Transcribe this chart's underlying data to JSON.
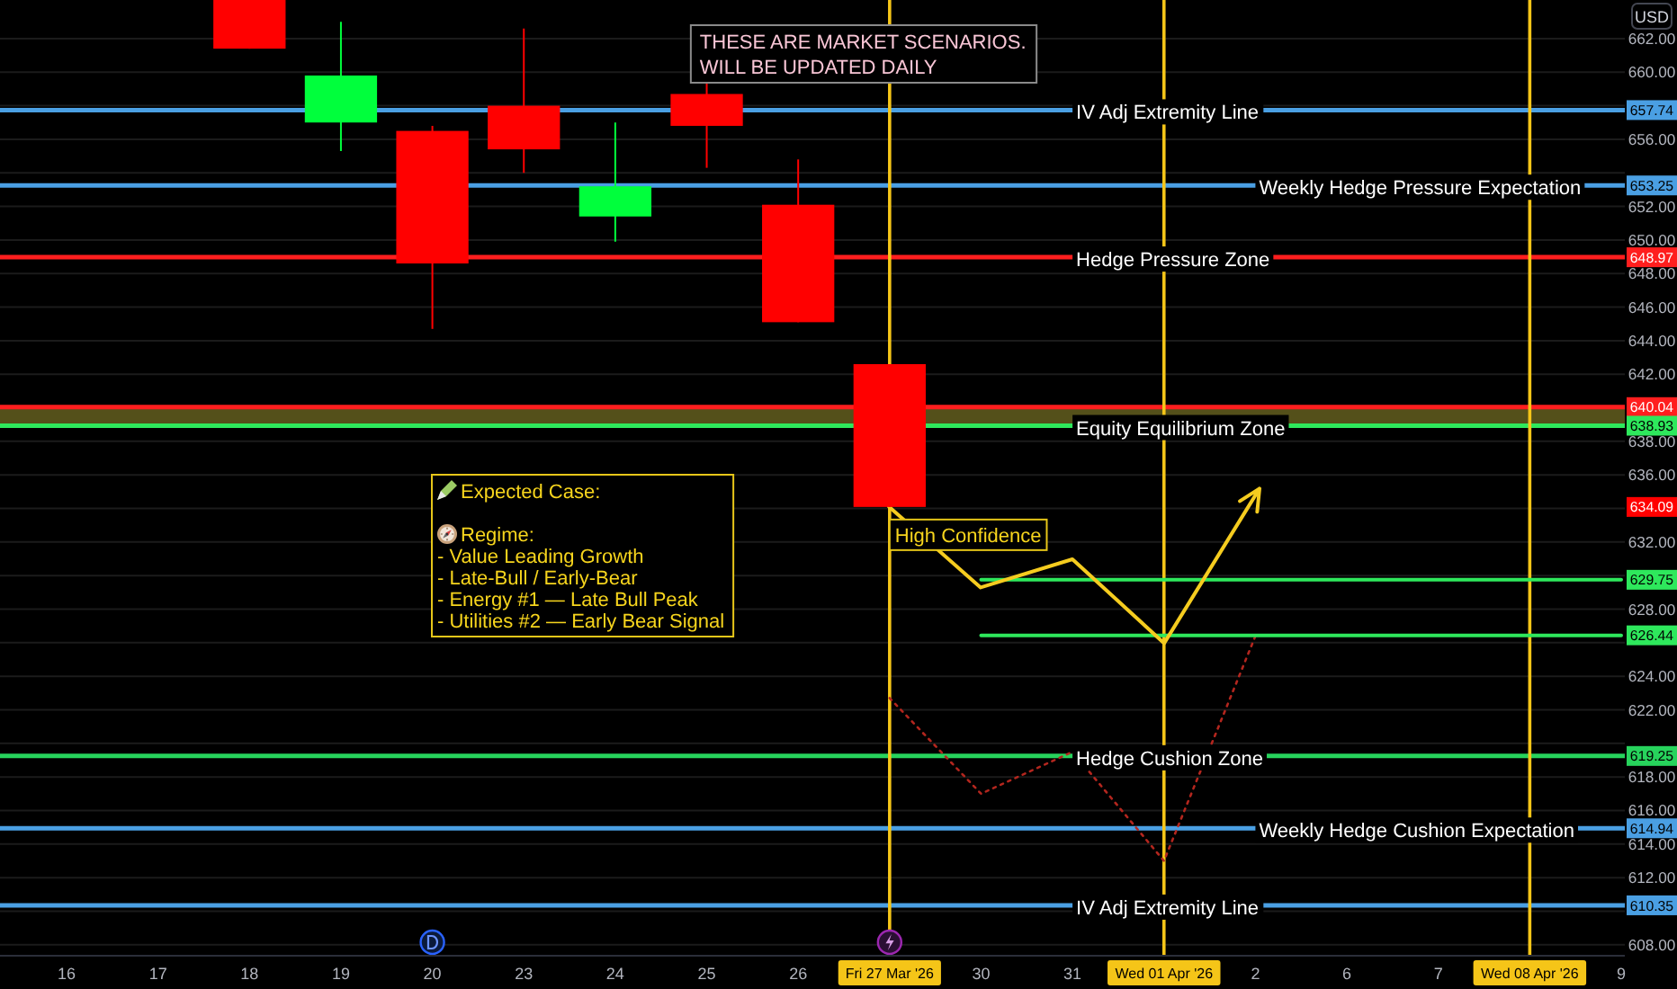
{
  "chart_data": {
    "type": "candlestick",
    "ylabel": "USD",
    "categories": [
      "16",
      "17",
      "18",
      "19",
      "20",
      "23",
      "24",
      "25",
      "26",
      "Fri 27 Mar '26",
      "30",
      "31",
      "Wed 01 Apr '26",
      "2",
      "6",
      "7",
      "Wed 08 Apr '26",
      "9"
    ],
    "ohlc": [
      null,
      null,
      [
        664.3,
        664.3,
        661.4,
        661.4
      ],
      [
        657.0,
        663.0,
        655.3,
        659.8
      ],
      [
        656.5,
        656.8,
        644.7,
        648.6
      ],
      [
        658.0,
        662.6,
        654.0,
        655.4
      ],
      [
        651.4,
        657.0,
        649.9,
        653.2
      ],
      [
        658.7,
        659.5,
        654.3,
        656.8
      ],
      [
        652.1,
        654.8,
        645.1,
        645.1
      ],
      [
        642.6,
        642.6,
        634.09,
        634.09
      ],
      null,
      null,
      null,
      null,
      null,
      null,
      null,
      null
    ],
    "colors": [
      null,
      null,
      "#ff0000",
      "#00ff3c",
      "#ff0000",
      "#ff0000",
      "#00ff3c",
      "#ff0000",
      "#ff0000",
      "#ff0000",
      null,
      null,
      null,
      null,
      null,
      null,
      null,
      null
    ],
    "value_labels": [
      null,
      null,
      null,
      null,
      null,
      null,
      null,
      null,
      null,
      "634.09",
      null,
      null,
      null,
      null,
      null,
      null,
      null,
      null
    ],
    "series": [
      {
        "type": "line",
        "color": "#b3261e",
        "line_style": "dotted",
        "values": [
          null,
          null,
          null,
          null,
          null,
          null,
          null,
          null,
          null,
          622.7,
          617.0,
          619.5,
          613.0,
          626.4,
          null,
          null,
          null,
          null
        ]
      },
      {
        "type": "line",
        "color": "#2ee85c",
        "values": [
          null,
          null,
          null,
          null,
          null,
          null,
          null,
          null,
          null,
          null,
          629.75,
          629.75,
          629.75,
          629.75,
          629.75,
          629.75,
          629.75,
          629.75
        ],
        "value_labels": [
          null,
          null,
          null,
          null,
          null,
          null,
          null,
          null,
          null,
          null,
          null,
          null,
          null,
          null,
          null,
          null,
          null,
          "629.75"
        ]
      },
      {
        "type": "line",
        "color": "#2ee85c",
        "values": [
          null,
          null,
          null,
          null,
          null,
          null,
          null,
          null,
          null,
          null,
          626.44,
          626.44,
          626.44,
          626.44,
          626.44,
          626.44,
          626.44,
          626.44
        ],
        "value_labels": [
          null,
          null,
          null,
          null,
          null,
          null,
          null,
          null,
          null,
          null,
          null,
          null,
          null,
          null,
          null,
          null,
          null,
          "626.44"
        ]
      }
    ],
    "ylim": [
      607.4,
      664.3
    ],
    "yticks": [
      {
        "value": 608,
        "label": "608.00"
      },
      {
        "value": 610,
        "label": null
      },
      {
        "value": 612,
        "label": "612.00"
      },
      {
        "value": 614,
        "label": "614.00"
      },
      {
        "value": 616,
        "label": "616.00"
      },
      {
        "value": 618,
        "label": "618.00"
      },
      {
        "value": 620,
        "label": null
      },
      {
        "value": 622,
        "label": "622.00"
      },
      {
        "value": 624,
        "label": "624.00"
      },
      {
        "value": 626,
        "label": null
      },
      {
        "value": 628,
        "label": "628.00"
      },
      {
        "value": 630,
        "label": null
      },
      {
        "value": 632,
        "label": "632.00"
      },
      {
        "value": 634,
        "label": null
      },
      {
        "value": 636,
        "label": "636.00"
      },
      {
        "value": 638,
        "label": "638.00"
      },
      {
        "value": 640,
        "label": null
      },
      {
        "value": 642,
        "label": "642.00"
      },
      {
        "value": 644,
        "label": "644.00"
      },
      {
        "value": 646,
        "label": "646.00"
      },
      {
        "value": 648,
        "label": "648.00"
      },
      {
        "value": 650,
        "label": "650.00"
      },
      {
        "value": 652,
        "label": "652.00"
      },
      {
        "value": 654,
        "label": null
      },
      {
        "value": 656,
        "label": "656.00"
      },
      {
        "value": 658,
        "label": null
      },
      {
        "value": 660,
        "label": "660.00"
      },
      {
        "value": 662,
        "label": "662.00"
      }
    ],
    "grid": "y",
    "ref_lines": [
      {
        "axis": "y",
        "value": 657.74,
        "label": "IV Adj Extremity Line",
        "color": "#4a9fe3"
      },
      {
        "axis": "y",
        "value": 653.25,
        "label": "Weekly Hedge Pressure Expectation",
        "color": "#4a9fe3"
      },
      {
        "axis": "y",
        "value": 648.97,
        "label": "Hedge Pressure Zone",
        "color": "#ff1e1e"
      },
      {
        "axis": "y",
        "value": 640.04,
        "color": "#ff1e1e"
      },
      {
        "axis": "y",
        "value": 638.93,
        "color": "#2ee85c"
      },
      {
        "axis": "y",
        "value": 619.25,
        "label": "Hedge Cushion Zone",
        "color": "#27d35c"
      },
      {
        "axis": "y",
        "value": 614.94,
        "label": "Weekly Hedge Cushion Expectation",
        "color": "#4a9fe3"
      },
      {
        "axis": "y",
        "value": 610.35,
        "label": "IV Adj Extremity Line",
        "color": "#4a9fe3"
      },
      {
        "axis": "x",
        "value": "Fri 27 Mar '26",
        "color": "#f5c518"
      },
      {
        "axis": "x",
        "value": "Wed 01 Apr '26",
        "color": "#f5c518"
      },
      {
        "axis": "x",
        "value": "Wed 08 Apr '26",
        "color": "#f5c518"
      }
    ],
    "bands": [
      {
        "axis": "y",
        "from": 638.93,
        "to": 640.04,
        "label": "Equity Equilibrium Zone",
        "color": "#54501a"
      }
    ],
    "annotations": [
      "THESE ARE MARKET SCENARIOS.\nWILL BE UPDATED DAILY",
      "Expected Case:\n\nRegime:\n- Value Leading Growth\n- Late-Bull / Early-Bear\n- Energy #1 — Late Bull Peak\n- Utilities #2 — Early Bear Signal",
      {
        "text": "High Confidence",
        "x": "Fri 27 Mar '26",
        "y": 634.09
      },
      {
        "text": "657.74",
        "y": 657.74
      },
      {
        "text": "653.25",
        "y": 653.25
      },
      {
        "text": "648.97",
        "y": 648.97
      },
      {
        "text": "640.04",
        "y": 640.04
      },
      {
        "text": "638.93",
        "y": 638.93
      },
      {
        "text": "619.25",
        "y": 619.25
      },
      {
        "text": "614.94",
        "y": 614.94
      },
      {
        "text": "610.35",
        "y": 610.35
      }
    ]
  }
}
